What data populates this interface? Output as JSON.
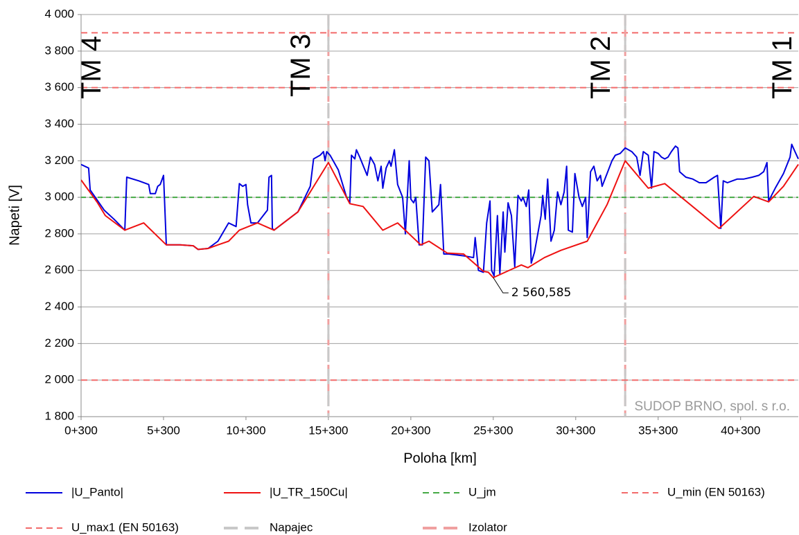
{
  "chart_data": {
    "type": "line",
    "xlabel": "Poloha [km]",
    "ylabel": "Napeti [V]",
    "xlim": [
      0.3,
      43.8
    ],
    "ylim": [
      1800,
      4000
    ],
    "xticks": [
      {
        "value": 0.3,
        "label": "0+300"
      },
      {
        "value": 5.3,
        "label": "5+300"
      },
      {
        "value": 10.3,
        "label": "10+300"
      },
      {
        "value": 15.3,
        "label": "15+300"
      },
      {
        "value": 20.3,
        "label": "20+300"
      },
      {
        "value": 25.3,
        "label": "25+300"
      },
      {
        "value": 30.3,
        "label": "30+300"
      },
      {
        "value": 35.3,
        "label": "35+300"
      },
      {
        "value": 40.3,
        "label": "40+300"
      }
    ],
    "yticks": [
      {
        "value": 1800,
        "label": "1 800"
      },
      {
        "value": 2000,
        "label": "2 000"
      },
      {
        "value": 2200,
        "label": "2 200"
      },
      {
        "value": 2400,
        "label": "2 400"
      },
      {
        "value": 2600,
        "label": "2 600"
      },
      {
        "value": 2800,
        "label": "2 800"
      },
      {
        "value": 3000,
        "label": "3 000"
      },
      {
        "value": 3200,
        "label": "3 200"
      },
      {
        "value": 3400,
        "label": "3 400"
      },
      {
        "value": 3600,
        "label": "3 600"
      },
      {
        "value": 3800,
        "label": "3 800"
      },
      {
        "value": 4000,
        "label": "4 000"
      }
    ],
    "grid": true,
    "annotations": [
      "TM 4",
      "TM 3",
      "TM 2",
      "TM 1"
    ],
    "watermark": "SUDOP BRNO, spol. s r.o.",
    "series": [
      {
        "name": "|U_Panto|",
        "color": "#0000dd",
        "x": [
          0.3,
          0.76,
          0.85,
          1.7,
          2.3,
          2.95,
          3.07,
          3.8,
          4.4,
          4.5,
          4.8,
          4.95,
          5.1,
          5.3,
          5.47,
          6.3,
          7.1,
          7.4,
          8.0,
          8.6,
          9.25,
          9.7,
          9.9,
          10.1,
          10.3,
          10.4,
          10.6,
          11.0,
          11.6,
          11.7,
          11.85,
          11.9,
          12.0,
          13.45,
          14.2,
          14.4,
          14.8,
          15.0,
          15.1,
          15.2,
          15.4,
          15.9,
          16.4,
          16.6,
          16.7,
          16.9,
          17.0,
          17.2,
          17.65,
          17.85,
          18.1,
          18.3,
          18.5,
          18.6,
          18.8,
          19.0,
          19.1,
          19.3,
          19.5,
          19.8,
          19.97,
          20.2,
          20.3,
          20.47,
          20.6,
          20.8,
          21.0,
          21.2,
          21.4,
          21.6,
          22.0,
          22.1,
          22.3,
          22.6,
          23.5,
          24.1,
          24.2,
          24.4,
          24.7,
          24.9,
          25.1,
          25.2,
          25.35,
          25.55,
          25.7,
          25.9,
          26.0,
          26.2,
          26.4,
          26.6,
          26.8,
          27.0,
          27.1,
          27.3,
          27.45,
          27.6,
          27.8,
          28.2,
          28.3,
          28.45,
          28.6,
          28.8,
          29.0,
          29.2,
          29.4,
          29.6,
          29.75,
          29.85,
          30.1,
          30.25,
          30.5,
          30.7,
          30.9,
          31.0,
          31.2,
          31.4,
          31.6,
          31.8,
          31.9,
          32.2,
          32.5,
          32.7,
          33.0,
          33.3,
          33.7,
          34.0,
          34.2,
          34.4,
          34.7,
          34.9,
          35.05,
          35.3,
          35.5,
          35.7,
          35.9,
          36.1,
          36.35,
          36.5,
          36.6,
          36.98,
          37.4,
          37.8,
          38.2,
          38.7,
          38.9,
          39.1,
          39.25,
          39.5,
          39.8,
          40.1,
          40.5,
          41.0,
          41.4,
          41.7,
          41.9,
          42.0,
          42.4,
          42.9,
          43.3,
          43.4,
          43.6,
          43.8
        ],
        "values": [
          3180,
          3160,
          3040,
          2930,
          2880,
          2820,
          3110,
          3090,
          3070,
          3020,
          3020,
          3060,
          3070,
          3120,
          2740,
          2740,
          2735,
          2715,
          2720,
          2760,
          2860,
          2840,
          3075,
          3060,
          3070,
          2960,
          2860,
          2860,
          2930,
          3110,
          3120,
          2830,
          2820,
          2920,
          3060,
          3210,
          3230,
          3250,
          3200,
          3250,
          3230,
          3150,
          3000,
          2970,
          3230,
          3210,
          3260,
          3220,
          3120,
          3220,
          3180,
          3090,
          3170,
          3050,
          3160,
          3200,
          3170,
          3260,
          3070,
          3000,
          2800,
          3200,
          2990,
          2970,
          3000,
          2740,
          2740,
          3220,
          3200,
          2920,
          2960,
          3070,
          2690,
          2690,
          2680,
          2670,
          2780,
          2600,
          2590,
          2860,
          2980,
          2600,
          2570,
          2900,
          2580,
          2920,
          2700,
          2970,
          2900,
          2620,
          3010,
          2980,
          3000,
          2950,
          3040,
          2640,
          2700,
          2900,
          3010,
          2880,
          3100,
          2760,
          2820,
          3030,
          2960,
          3030,
          3170,
          2820,
          2810,
          3130,
          3000,
          2950,
          3000,
          2780,
          3140,
          3170,
          3090,
          3120,
          3060,
          3130,
          3200,
          3230,
          3240,
          3270,
          3250,
          3220,
          3120,
          3250,
          3230,
          3050,
          3250,
          3240,
          3220,
          3210,
          3220,
          3250,
          3280,
          3270,
          3140,
          3110,
          3100,
          3080,
          3080,
          3110,
          3120,
          2830,
          3090,
          3080,
          3090,
          3100,
          3100,
          3110,
          3120,
          3140,
          3190,
          2980,
          3050,
          3130,
          3220,
          3290,
          3250,
          3210
        ]
      },
      {
        "name": "|U_TR_150Cu|",
        "color": "#ee1111",
        "x": [
          0.3,
          1.27,
          1.77,
          2.95,
          4.1,
          5.47,
          6.3,
          7.1,
          7.4,
          8.0,
          8.6,
          9.25,
          9.9,
          11.0,
          12.0,
          13.45,
          15.3,
          16.6,
          17.4,
          18.6,
          19.5,
          20.9,
          21.4,
          22.5,
          23.5,
          24.7,
          25.0,
          25.3,
          26.5,
          27.0,
          27.4,
          28.4,
          29.4,
          31.0,
          32.2,
          33.3,
          34.7,
          35.7,
          39.0,
          41.1,
          42.0,
          42.9,
          43.8
        ],
        "values": [
          3095,
          2974,
          2900,
          2820,
          2860,
          2740,
          2740,
          2735,
          2715,
          2720,
          2740,
          2760,
          2820,
          2860,
          2820,
          2920,
          3190,
          2965,
          2950,
          2820,
          2860,
          2740,
          2760,
          2695,
          2690,
          2595,
          2590,
          2560.585,
          2610,
          2630,
          2615,
          2670,
          2710,
          2760,
          2960,
          3200,
          3050,
          3075,
          2830,
          3005,
          2975,
          3060,
          3180
        ],
        "value_labels": [
          null,
          null,
          null,
          null,
          null,
          null,
          null,
          null,
          null,
          null,
          null,
          null,
          null,
          null,
          null,
          null,
          null,
          null,
          null,
          null,
          null,
          null,
          null,
          null,
          null,
          null,
          null,
          "2 560,585",
          null,
          null,
          null,
          null,
          null,
          null,
          null,
          null,
          null,
          null,
          null,
          null,
          null,
          null,
          null
        ]
      },
      {
        "name": "U_jm",
        "color": "#44aa44",
        "dash": "7 5",
        "x": [
          0.3,
          43.8
        ],
        "values": [
          3000,
          3000
        ]
      },
      {
        "name": "U_min (EN 50163)",
        "color": "#f26a6a",
        "dash": "9 6",
        "x": [
          0.3,
          43.8
        ],
        "values": [
          2000,
          2000
        ]
      },
      {
        "name": "U_max1 (EN 50163)",
        "color": "#f26a6a",
        "dash": "9 6",
        "x": [
          0.3,
          43.8
        ],
        "values": [
          3600,
          3600
        ]
      }
    ],
    "hlines": [
      {
        "value": 3900,
        "color": "#f26a6a",
        "dash": "9 6"
      }
    ],
    "vertical_series": [
      {
        "name": "Napajec",
        "color": "#c8c8c8",
        "dash": "22 10",
        "x": [
          15.3,
          33.3
        ]
      },
      {
        "name": "Izolator",
        "color": "#f0a0a0",
        "dash": "16 6",
        "x": [
          15.3,
          33.3
        ]
      }
    ]
  }
}
